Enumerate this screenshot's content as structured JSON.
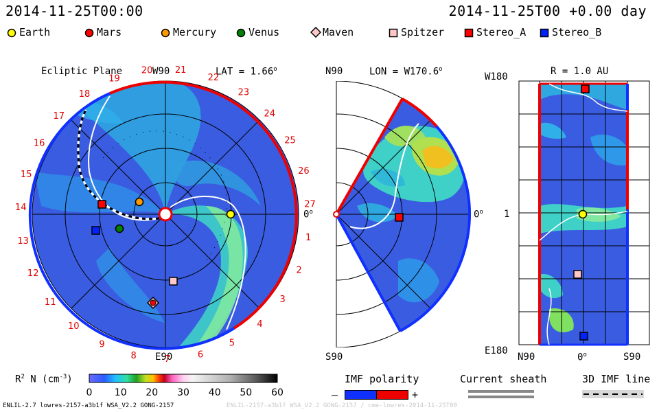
{
  "header": {
    "date_left": "2014-11-25T00:00",
    "date_right": "2014-11-25T00 +0.00 day"
  },
  "legend": [
    {
      "label": "Earth",
      "shape": "circle",
      "color": "#ffff00"
    },
    {
      "label": "Mars",
      "shape": "circle",
      "color": "#ff0000"
    },
    {
      "label": "Mercury",
      "shape": "circle",
      "color": "#ff9900"
    },
    {
      "label": "Venus",
      "shape": "circle",
      "color": "#008000"
    },
    {
      "label": "Maven",
      "shape": "diamond",
      "color": "#ffc8c8"
    },
    {
      "label": "Spitzer",
      "shape": "square",
      "color": "#ffc8c8"
    },
    {
      "label": "Stereo_A",
      "shape": "square",
      "color": "#ff0000"
    },
    {
      "label": "Stereo_B",
      "shape": "square",
      "color": "#0022ff"
    }
  ],
  "ecliptic": {
    "title": "Ecliptic Plane",
    "top_label": "W90",
    "bottom_label": "E90",
    "right_label": "0",
    "lat_label": "LAT = 1.66",
    "carrington_numbers": [
      "27",
      "1",
      "2",
      "3",
      "4",
      "5",
      "6",
      "7",
      "8",
      "9",
      "10",
      "11",
      "12",
      "13",
      "14",
      "15",
      "16",
      "17",
      "18",
      "19",
      "20",
      "21",
      "22",
      "23",
      "24",
      "25",
      "26"
    ]
  },
  "meridional": {
    "top_label": "N90",
    "bottom_label": "S90",
    "right_label": "0",
    "lon_label": "LON = W170.6"
  },
  "radial": {
    "title": "R = 1.0 AU",
    "top_left": "W180",
    "mid_left": "1",
    "bottom_left": "E180",
    "bottom_labels": [
      "N90",
      "0",
      "S90"
    ]
  },
  "colorbar": {
    "label": "R",
    "label_sup": "2",
    "label_rest": " N (cm",
    "label_sup2": "-3",
    "label_end": ")",
    "ticks": [
      "0",
      "10",
      "20",
      "30",
      "40",
      "50",
      "60"
    ]
  },
  "imf_polarity": {
    "title": "IMF polarity",
    "minus": "–",
    "plus": "+"
  },
  "current_sheath": {
    "title": "Current sheath"
  },
  "imf_line": {
    "title": "3D IMF line"
  },
  "footer": {
    "left": "ENLIL-2.7 lowres-2157-a3b1f WSA_V2.2 GONG-2157",
    "right": "ENLIL-2157-a3b1f WSA_V2.2 GONG-2157 / cme-lowres-2014-11-25T00"
  },
  "colors": {
    "bg_blue": "#3a5ce0",
    "accent_red": "#ee0000",
    "edge_blue": "#1030ff"
  }
}
